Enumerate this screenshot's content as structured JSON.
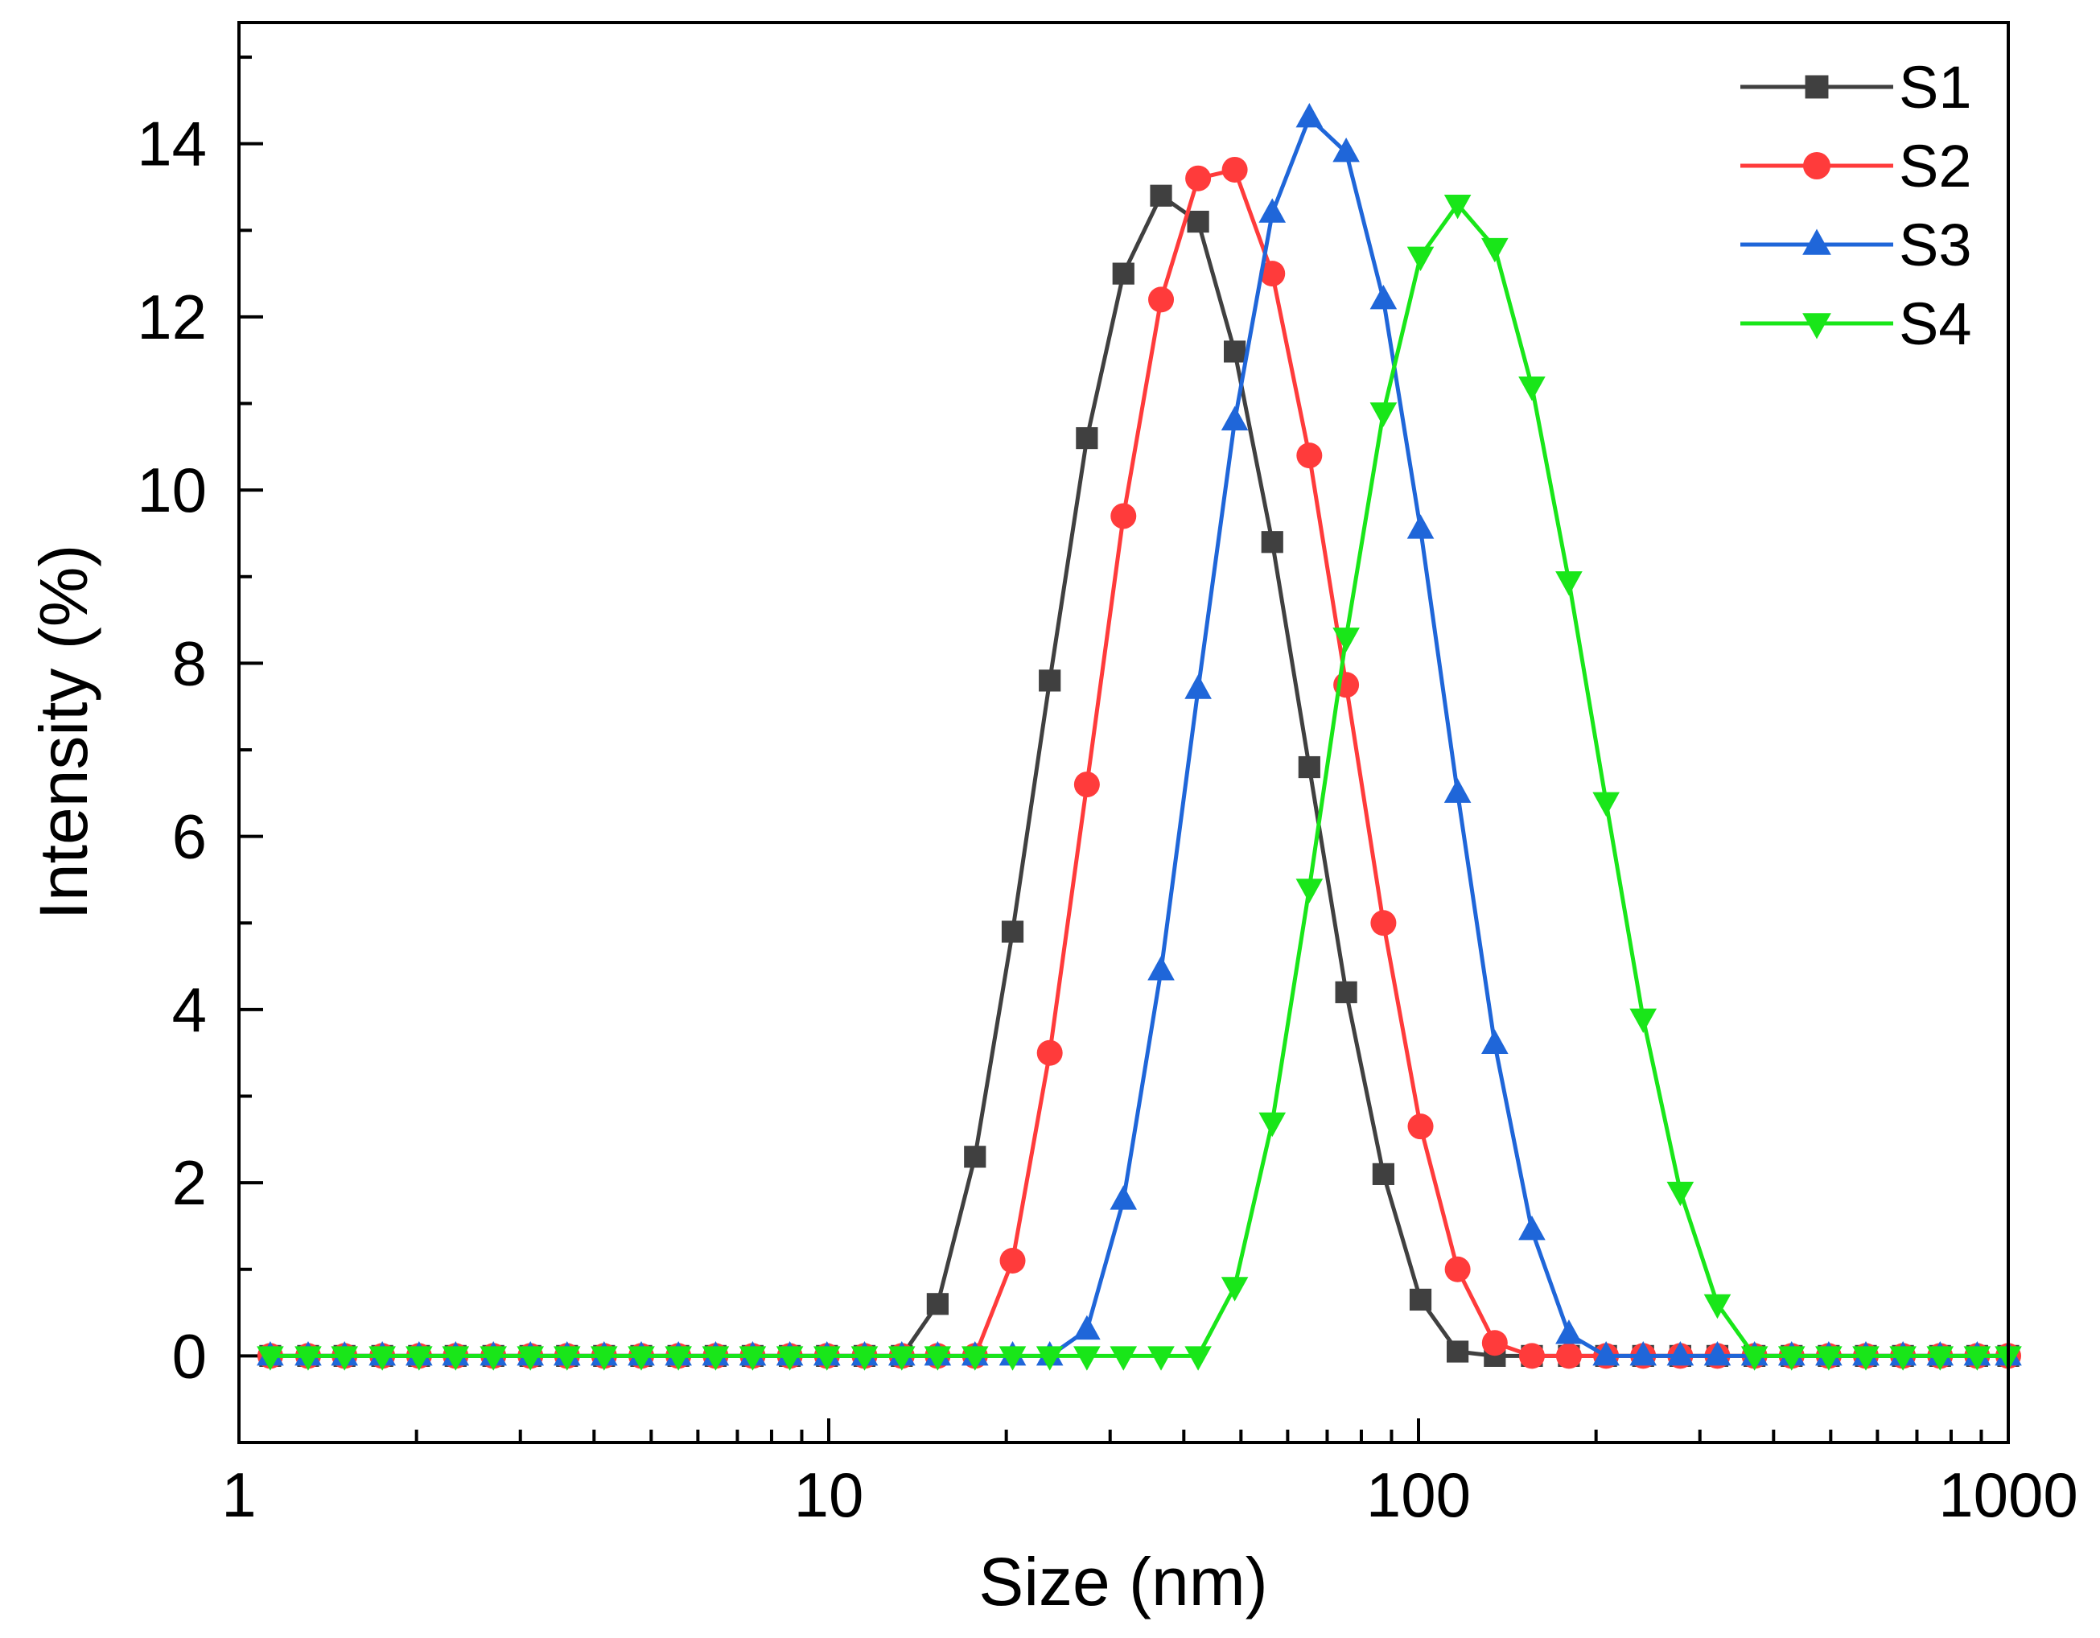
{
  "chart_data": {
    "type": "line",
    "xscale": "log",
    "xlabel": "Size (nm)",
    "ylabel": "Intensity (%)",
    "xlim": [
      1,
      1000
    ],
    "ylim": [
      -1,
      15.4
    ],
    "xticks": [
      1,
      10,
      100,
      1000
    ],
    "xtick_labels": [
      "1",
      "10",
      "100",
      "1000"
    ],
    "yticks": [
      0,
      2,
      4,
      6,
      8,
      10,
      12,
      14
    ],
    "ytick_labels": [
      "0",
      "2",
      "4",
      "6",
      "8",
      "10",
      "12",
      "14"
    ],
    "legend_position": "top-right",
    "x": [
      1.13,
      1.31,
      1.51,
      1.75,
      2.02,
      2.33,
      2.7,
      3.12,
      3.6,
      4.16,
      4.81,
      5.56,
      6.43,
      7.43,
      8.59,
      9.93,
      11.5,
      13.3,
      15.3,
      17.7,
      20.5,
      23.7,
      27.4,
      31.6,
      36.6,
      42.3,
      48.8,
      56.5,
      65.3,
      75.4,
      87.2,
      100.8,
      116.5,
      134.7,
      155.7,
      179.9,
      208.0,
      240.4,
      277.9,
      321.2,
      371.3,
      429.2,
      496.1,
      573.5,
      662.9,
      766.3,
      885.7,
      1000.0
    ],
    "series": [
      {
        "name": "S1",
        "color": "#404040",
        "marker": "square",
        "values": [
          0,
          0,
          0,
          0,
          0,
          0,
          0,
          0,
          0,
          0,
          0,
          0,
          0,
          0,
          0,
          0,
          0,
          0,
          0.6,
          2.3,
          4.9,
          7.8,
          10.6,
          12.5,
          13.4,
          13.1,
          11.6,
          9.4,
          6.8,
          4.2,
          2.1,
          0.65,
          0.05,
          0,
          0,
          0,
          0,
          0,
          0,
          0,
          0,
          0,
          0,
          0,
          0,
          0,
          0,
          0
        ]
      },
      {
        "name": "S2",
        "color": "#ff3b3b",
        "marker": "circle",
        "values": [
          0,
          0,
          0,
          0,
          0,
          0,
          0,
          0,
          0,
          0,
          0,
          0,
          0,
          0,
          0,
          0,
          0,
          0,
          0,
          0,
          1.1,
          3.5,
          6.6,
          9.7,
          12.2,
          13.6,
          13.7,
          12.5,
          10.4,
          7.75,
          5.0,
          2.65,
          1.0,
          0.15,
          0,
          0,
          0,
          0,
          0,
          0,
          0,
          0,
          0,
          0,
          0,
          0,
          0,
          0
        ]
      },
      {
        "name": "S3",
        "color": "#1f66d9",
        "marker": "triangle-up",
        "values": [
          0,
          0,
          0,
          0,
          0,
          0,
          0,
          0,
          0,
          0,
          0,
          0,
          0,
          0,
          0,
          0,
          0,
          0,
          0,
          0,
          0,
          0,
          0.3,
          1.8,
          4.45,
          7.7,
          10.8,
          13.2,
          14.3,
          13.9,
          12.2,
          9.55,
          6.5,
          3.6,
          1.45,
          0.25,
          0,
          0,
          0,
          0,
          0,
          0,
          0,
          0,
          0,
          0,
          0,
          0
        ]
      },
      {
        "name": "S4",
        "color": "#19e619",
        "marker": "triangle-down",
        "values": [
          0,
          0,
          0,
          0,
          0,
          0,
          0,
          0,
          0,
          0,
          0,
          0,
          0,
          0,
          0,
          0,
          0,
          0,
          0,
          0,
          0,
          0,
          0,
          0,
          0,
          0,
          0.8,
          2.7,
          5.4,
          8.3,
          10.9,
          12.7,
          13.3,
          12.8,
          11.2,
          8.95,
          6.4,
          3.9,
          1.9,
          0.6,
          0,
          0,
          0,
          0,
          0,
          0,
          0,
          0
        ]
      }
    ]
  }
}
